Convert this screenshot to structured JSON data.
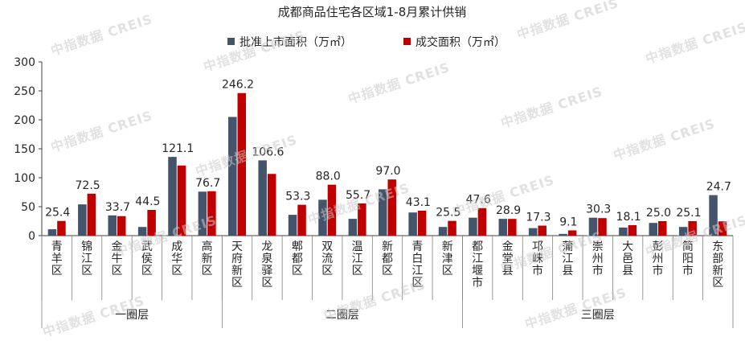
{
  "watermark": "中指数据 CREIS",
  "chart_data": {
    "type": "bar",
    "title": "成都商品住宅各区域1-8月累计供销",
    "ylim": [
      0,
      300
    ],
    "yticks": [
      0,
      50,
      100,
      150,
      200,
      250,
      300
    ],
    "legend_position": "top",
    "categories": [
      "青羊区",
      "锦江区",
      "金牛区",
      "武侯区",
      "成华区",
      "高新区",
      "天府新区",
      "龙泉驿区",
      "郫都区",
      "双流区",
      "温江区",
      "新都区",
      "青白江区",
      "新津区",
      "都江堰市",
      "金堂县",
      "邛崃市",
      "蒲江县",
      "崇州市",
      "大邑县",
      "彭州市",
      "简阳市",
      "东部新区"
    ],
    "groups": [
      {
        "label": "一圈层",
        "count": 6
      },
      {
        "label": "二圈层",
        "count": 8
      },
      {
        "label": "三圈层",
        "count": 9
      }
    ],
    "series": [
      {
        "name": "批准上市面积（万㎡）",
        "color": "#44546a",
        "values": [
          11,
          54,
          35,
          15,
          136,
          76,
          205,
          130,
          36,
          62,
          29,
          80,
          40,
          15,
          31,
          29,
          13,
          3,
          31,
          14,
          22,
          15,
          70
        ]
      },
      {
        "name": "成交面积（万㎡）",
        "color": "#c00000",
        "values": [
          25.4,
          72.5,
          33.7,
          44.5,
          121.1,
          76.7,
          246.2,
          106.6,
          53.3,
          88.0,
          55.7,
          97.0,
          43.1,
          25.5,
          47.6,
          28.9,
          17.3,
          9.1,
          30.3,
          18.1,
          25.0,
          25.1,
          24.7
        ]
      }
    ],
    "data_labels": [
      "25.4",
      "72.5",
      "33.7",
      "44.5",
      "121.1",
      "76.7",
      "246.2",
      "106.6",
      "53.3",
      "88.0",
      "55.7",
      "97.0",
      "43.1",
      "25.5",
      "47.6",
      "28.9",
      "17.3",
      "9.1",
      "30.3",
      "18.1",
      "25.0",
      "25.1",
      "24.7"
    ]
  }
}
